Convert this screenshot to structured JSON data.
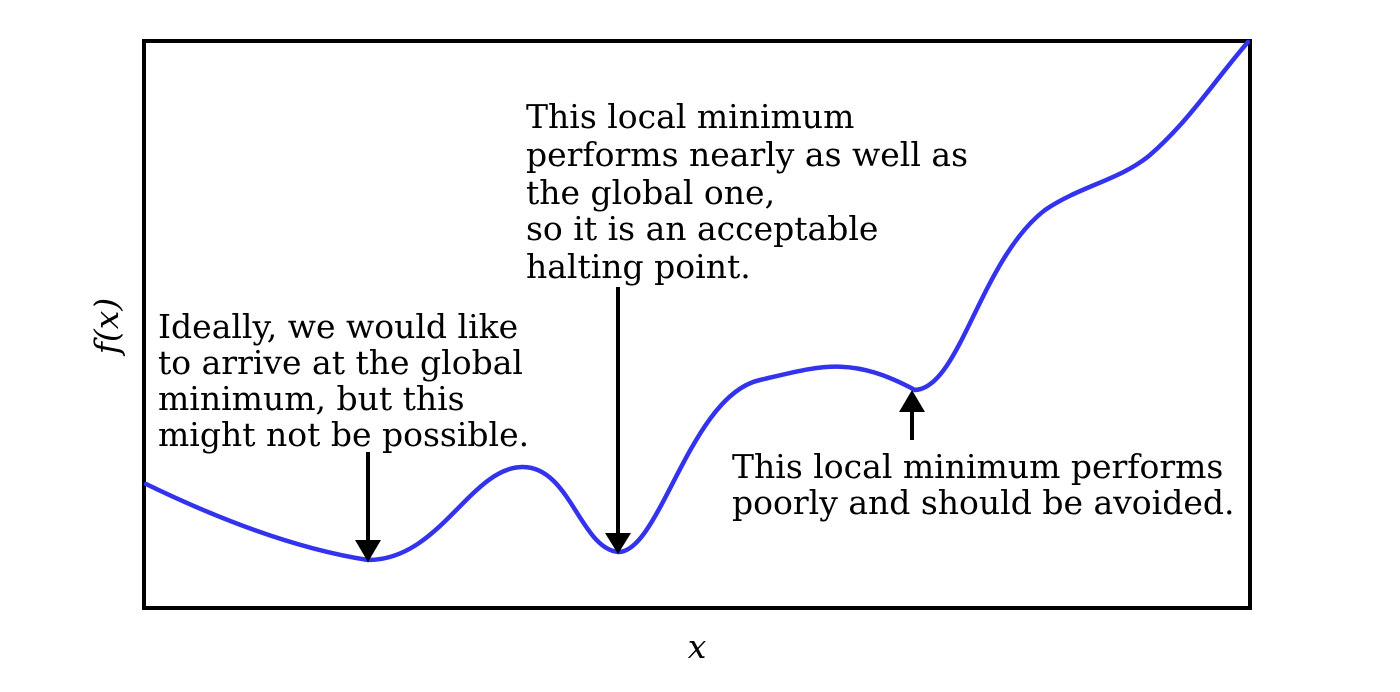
{
  "figure": {
    "xlabel": "x",
    "ylabel": "f(x)",
    "curve_color": "#3333ee",
    "annotations": {
      "global_minimum": [
        "Ideally, we would like",
        "to arrive at the global",
        "minimum, but this",
        "might not be possible."
      ],
      "good_local_minimum": [
        "This local minimum",
        "performs nearly as well as",
        "the global one,",
        "so it is an acceptable",
        "halting point."
      ],
      "bad_local_minimum": [
        "This local minimum performs",
        "poorly and should be avoided."
      ]
    }
  }
}
